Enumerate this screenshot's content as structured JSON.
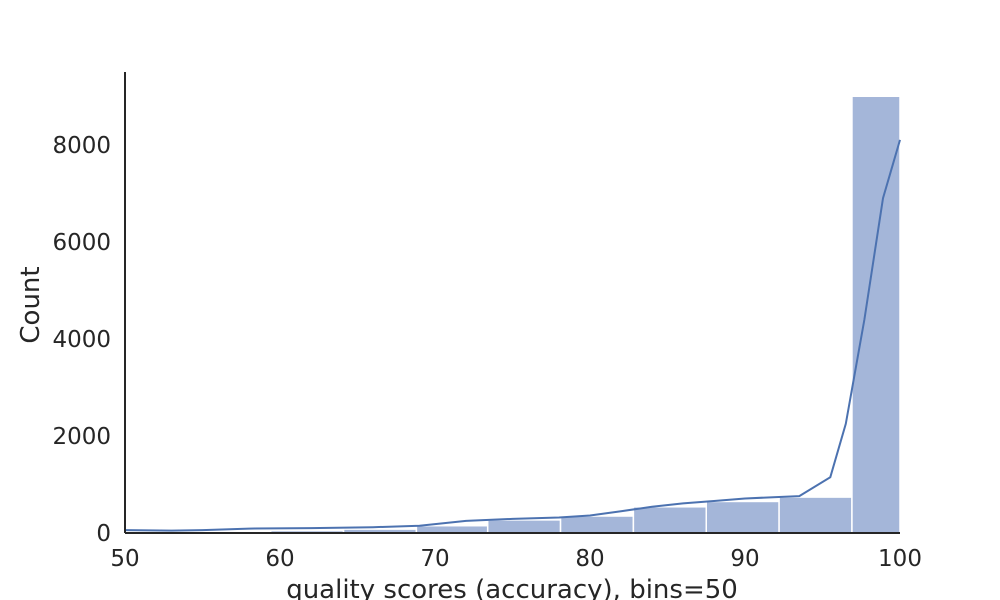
{
  "chart_data": {
    "type": "bar",
    "subtype": "histogram-with-kde",
    "title": "",
    "xlabel": "quality scores (accuracy), bins=50",
    "ylabel": "Count",
    "xlim": [
      50,
      100
    ],
    "ylim": [
      0,
      9500
    ],
    "xticks": [
      50,
      60,
      70,
      80,
      90,
      100
    ],
    "yticks": [
      0,
      2000,
      4000,
      6000,
      8000
    ],
    "grid": false,
    "legend": "none",
    "bins": [
      {
        "x0": 50.0,
        "x1": 54.7,
        "count": 15
      },
      {
        "x0": 54.7,
        "x1": 59.4,
        "count": 30
      },
      {
        "x0": 59.4,
        "x1": 64.1,
        "count": 50
      },
      {
        "x0": 64.1,
        "x1": 68.8,
        "count": 80
      },
      {
        "x0": 68.8,
        "x1": 73.4,
        "count": 150
      },
      {
        "x0": 73.4,
        "x1": 78.1,
        "count": 270
      },
      {
        "x0": 78.1,
        "x1": 82.8,
        "count": 350
      },
      {
        "x0": 82.8,
        "x1": 87.5,
        "count": 540
      },
      {
        "x0": 87.5,
        "x1": 92.2,
        "count": 650
      },
      {
        "x0": 92.2,
        "x1": 96.9,
        "count": 740
      },
      {
        "x0": 96.9,
        "x1": 100.0,
        "count": 9000
      }
    ],
    "kde": {
      "x": [
        50,
        53,
        55,
        58,
        62,
        66,
        69,
        72,
        75,
        78,
        80,
        82,
        84,
        86,
        88,
        90,
        92,
        93.5,
        95.5,
        96.5,
        97.7,
        98.9,
        100
      ],
      "y": [
        60,
        50,
        60,
        90,
        100,
        120,
        150,
        250,
        290,
        320,
        360,
        450,
        540,
        610,
        660,
        710,
        740,
        760,
        1150,
        2250,
        4400,
        6900,
        8100
      ]
    },
    "colors": {
      "bar_fill": "#a4b6d9",
      "bar_edge": "#ffffff",
      "kde_line": "#4c72b0",
      "axis": "#262626",
      "text": "#262626"
    }
  }
}
